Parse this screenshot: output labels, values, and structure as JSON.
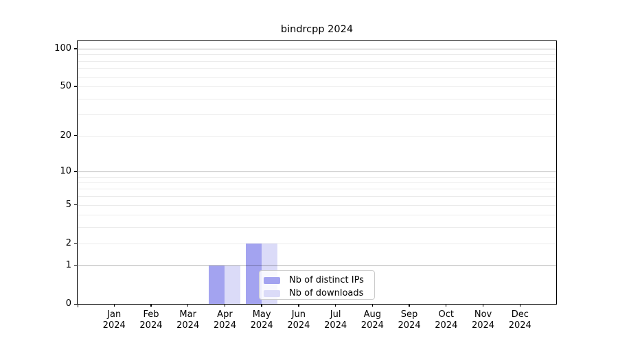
{
  "title": "bindrcpp 2024",
  "chart_data": {
    "type": "bar",
    "title": "bindrcpp 2024",
    "categories": [
      "Jan 2024",
      "Feb 2024",
      "Mar 2024",
      "Apr 2024",
      "May 2024",
      "Jun 2024",
      "Jul 2024",
      "Aug 2024",
      "Sep 2024",
      "Oct 2024",
      "Nov 2024",
      "Dec 2024"
    ],
    "series": [
      {
        "name": "Nb of distinct IPs",
        "color": "#a3a3f0",
        "values": [
          0,
          0,
          0,
          1,
          2,
          0,
          0,
          0,
          0,
          0,
          0,
          0
        ]
      },
      {
        "name": "Nb of downloads",
        "color": "#dbdbf8",
        "values": [
          0,
          0,
          0,
          1,
          2,
          0,
          0,
          0,
          0,
          0,
          0,
          0
        ]
      }
    ],
    "xlabel": "",
    "ylabel": "",
    "y_scale": "log1p",
    "y_ticks": [
      0,
      1,
      2,
      5,
      10,
      20,
      50,
      100
    ],
    "y_major_gridlines": [
      1,
      10,
      100
    ],
    "y_minor_gridlines": [
      2,
      3,
      4,
      5,
      6,
      7,
      8,
      9,
      20,
      30,
      40,
      50,
      60,
      70,
      80,
      90
    ],
    "ylim": [
      0,
      115
    ],
    "grid": true,
    "legend": {
      "position": "lower center-left, inside plot",
      "entries": [
        "Nb of distinct IPs",
        "Nb of downloads"
      ]
    }
  }
}
